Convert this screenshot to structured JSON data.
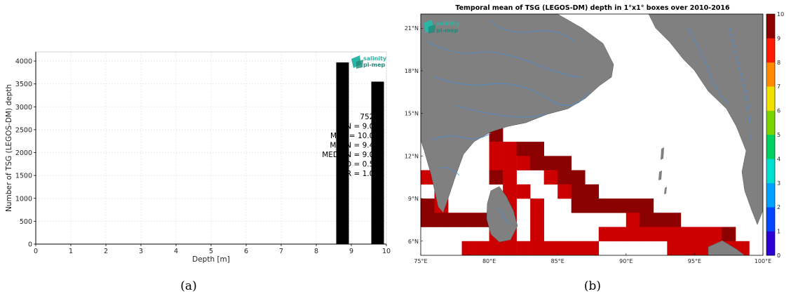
{
  "captions": {
    "a": "(a)",
    "b": "(b)"
  },
  "logo": {
    "line1": "salinity",
    "line2": "pi-mep",
    "color1": "#2ab5a5",
    "color2": "#1e8a7a"
  },
  "colors": {
    "bar": "#000000",
    "land": "#808080",
    "river": "#4a8fd6",
    "cell_dark": "#8b0000",
    "cell_red": "#cc0000"
  },
  "chart_data": [
    {
      "type": "bar",
      "title": "",
      "xlabel": "Depth [m]",
      "ylabel": "Number of TSG (LEGOS-DM) depth",
      "xlim": [
        0,
        10
      ],
      "ylim": [
        0,
        4200
      ],
      "xticks": [
        "0",
        "1",
        "2",
        "3",
        "4",
        "5",
        "6",
        "7",
        "8",
        "9",
        "10"
      ],
      "yticks": [
        "0",
        "500",
        "1000",
        "1500",
        "2000",
        "2500",
        "3000",
        "3500",
        "4000"
      ],
      "grid": true,
      "bars": [
        {
          "x": 8.75,
          "value": 3970
        },
        {
          "x": 9.75,
          "value": 3550
        }
      ],
      "stats": [
        {
          "label": "",
          "value": "7523"
        },
        {
          "label": "MIN",
          "value": "9.00"
        },
        {
          "label": "MAX",
          "value": "10.00"
        },
        {
          "label": "MEAN",
          "value": "9.47"
        },
        {
          "label": "MEDIAN",
          "value": "9.00"
        },
        {
          "label": "STD",
          "value": "0.50"
        },
        {
          "label": "IQR",
          "value": "1.00"
        }
      ]
    },
    {
      "type": "heatmap",
      "title": "Temporal mean of TSG (LEGOS-DM) depth in 1°x1° boxes over 2010-2016",
      "xlim": [
        75,
        100
      ],
      "ylim": [
        5,
        22
      ],
      "xticks": [
        "75°E",
        "80°E",
        "85°E",
        "90°E",
        "95°E",
        "100°E"
      ],
      "yticks": [
        "6°N",
        "9°N",
        "12°N",
        "15°N",
        "18°N",
        "21°N"
      ],
      "colorbar": {
        "min": 0,
        "max": 10,
        "ticks": [
          "0",
          "1",
          "2",
          "3",
          "4",
          "5",
          "6",
          "7",
          "8",
          "9",
          "10"
        ]
      },
      "cells": [
        {
          "lon": 80,
          "lat": 13,
          "v": 10
        },
        {
          "lon": 80,
          "lat": 12,
          "v": 9
        },
        {
          "lon": 81,
          "lat": 12,
          "v": 9
        },
        {
          "lon": 82,
          "lat": 12,
          "v": 10
        },
        {
          "lon": 83,
          "lat": 12,
          "v": 10
        },
        {
          "lon": 80,
          "lat": 11,
          "v": 9
        },
        {
          "lon": 81,
          "lat": 11,
          "v": 9
        },
        {
          "lon": 82,
          "lat": 11,
          "v": 9
        },
        {
          "lon": 83,
          "lat": 11,
          "v": 10
        },
        {
          "lon": 84,
          "lat": 11,
          "v": 10
        },
        {
          "lon": 85,
          "lat": 11,
          "v": 10
        },
        {
          "lon": 80,
          "lat": 10,
          "v": 10
        },
        {
          "lon": 81,
          "lat": 10,
          "v": 9
        },
        {
          "lon": 84,
          "lat": 10,
          "v": 9
        },
        {
          "lon": 85,
          "lat": 10,
          "v": 10
        },
        {
          "lon": 86,
          "lat": 10,
          "v": 10
        },
        {
          "lon": 75,
          "lat": 10,
          "v": 9
        },
        {
          "lon": 76,
          "lat": 9,
          "v": 9
        },
        {
          "lon": 81,
          "lat": 9,
          "v": 9
        },
        {
          "lon": 82,
          "lat": 9,
          "v": 9
        },
        {
          "lon": 85,
          "lat": 9,
          "v": 9
        },
        {
          "lon": 86,
          "lat": 9,
          "v": 10
        },
        {
          "lon": 87,
          "lat": 9,
          "v": 10
        },
        {
          "lon": 75,
          "lat": 8,
          "v": 10
        },
        {
          "lon": 76,
          "lat": 8,
          "v": 9
        },
        {
          "lon": 81,
          "lat": 8,
          "v": 9
        },
        {
          "lon": 83,
          "lat": 8,
          "v": 9
        },
        {
          "lon": 86,
          "lat": 8,
          "v": 10
        },
        {
          "lon": 87,
          "lat": 8,
          "v": 10
        },
        {
          "lon": 88,
          "lat": 8,
          "v": 10
        },
        {
          "lon": 89,
          "lat": 8,
          "v": 10
        },
        {
          "lon": 90,
          "lat": 8,
          "v": 10
        },
        {
          "lon": 91,
          "lat": 8,
          "v": 10
        },
        {
          "lon": 75,
          "lat": 7,
          "v": 10
        },
        {
          "lon": 76,
          "lat": 7,
          "v": 10
        },
        {
          "lon": 77,
          "lat": 7,
          "v": 10
        },
        {
          "lon": 78,
          "lat": 7,
          "v": 10
        },
        {
          "lon": 79,
          "lat": 7,
          "v": 10
        },
        {
          "lon": 81,
          "lat": 7,
          "v": 9
        },
        {
          "lon": 83,
          "lat": 7,
          "v": 9
        },
        {
          "lon": 90,
          "lat": 7,
          "v": 9
        },
        {
          "lon": 91,
          "lat": 7,
          "v": 10
        },
        {
          "lon": 92,
          "lat": 7,
          "v": 10
        },
        {
          "lon": 93,
          "lat": 7,
          "v": 10
        },
        {
          "lon": 80,
          "lat": 6,
          "v": 9
        },
        {
          "lon": 81,
          "lat": 6,
          "v": 9
        },
        {
          "lon": 83,
          "lat": 6,
          "v": 9
        },
        {
          "lon": 88,
          "lat": 6,
          "v": 9
        },
        {
          "lon": 89,
          "lat": 6,
          "v": 9
        },
        {
          "lon": 90,
          "lat": 6,
          "v": 9
        },
        {
          "lon": 91,
          "lat": 6,
          "v": 9
        },
        {
          "lon": 92,
          "lat": 6,
          "v": 9
        },
        {
          "lon": 93,
          "lat": 6,
          "v": 9
        },
        {
          "lon": 94,
          "lat": 6,
          "v": 9
        },
        {
          "lon": 95,
          "lat": 6,
          "v": 9
        },
        {
          "lon": 96,
          "lat": 6,
          "v": 9
        },
        {
          "lon": 97,
          "lat": 6,
          "v": 10
        },
        {
          "lon": 78,
          "lat": 5,
          "v": 9
        },
        {
          "lon": 79,
          "lat": 5,
          "v": 9
        },
        {
          "lon": 80,
          "lat": 5,
          "v": 9
        },
        {
          "lon": 81,
          "lat": 5,
          "v": 9
        },
        {
          "lon": 82,
          "lat": 5,
          "v": 9
        },
        {
          "lon": 83,
          "lat": 5,
          "v": 9
        },
        {
          "lon": 84,
          "lat": 5,
          "v": 9
        },
        {
          "lon": 85,
          "lat": 5,
          "v": 9
        },
        {
          "lon": 86,
          "lat": 5,
          "v": 9
        },
        {
          "lon": 87,
          "lat": 5,
          "v": 9
        },
        {
          "lon": 93,
          "lat": 5,
          "v": 9
        },
        {
          "lon": 94,
          "lat": 5,
          "v": 9
        },
        {
          "lon": 95,
          "lat": 5,
          "v": 9
        },
        {
          "lon": 96,
          "lat": 5,
          "v": 9
        },
        {
          "lon": 97,
          "lat": 5,
          "v": 9
        },
        {
          "lon": 98,
          "lat": 5,
          "v": 9
        }
      ]
    }
  ]
}
